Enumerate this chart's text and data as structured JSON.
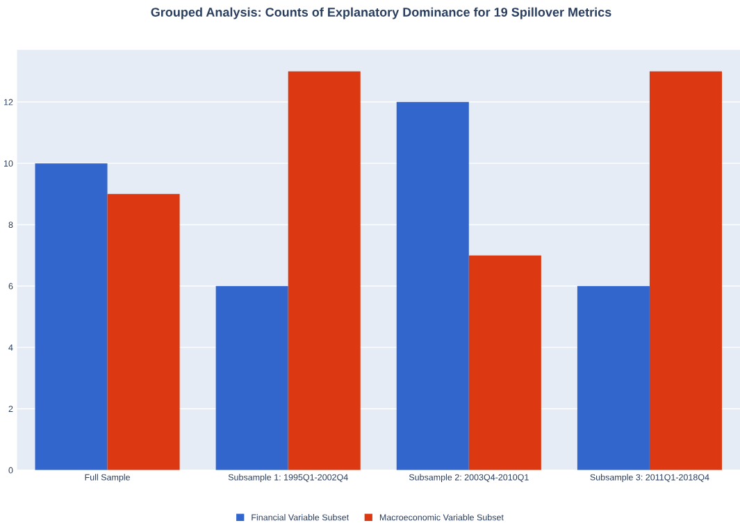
{
  "chart_data": {
    "type": "bar",
    "title": "Grouped Analysis: Counts of Explanatory Dominance for 19 Spillover Metrics",
    "categories": [
      "Full Sample",
      "Subsample 1: 1995Q1-2002Q4",
      "Subsample 2: 2003Q4-2010Q1",
      "Subsample 3: 2011Q1-2018Q4"
    ],
    "series": [
      {
        "name": "Financial Variable Subset",
        "color": "#3366cc",
        "values": [
          10,
          6,
          12,
          6
        ]
      },
      {
        "name": "Macroeconomic Variable Subset",
        "color": "#dc3912",
        "values": [
          9,
          13,
          7,
          13
        ]
      }
    ],
    "ylim": [
      0,
      13.7
    ],
    "yticks": [
      0,
      2,
      4,
      6,
      8,
      10,
      12
    ],
    "grid": "y",
    "legend": "bottom"
  }
}
